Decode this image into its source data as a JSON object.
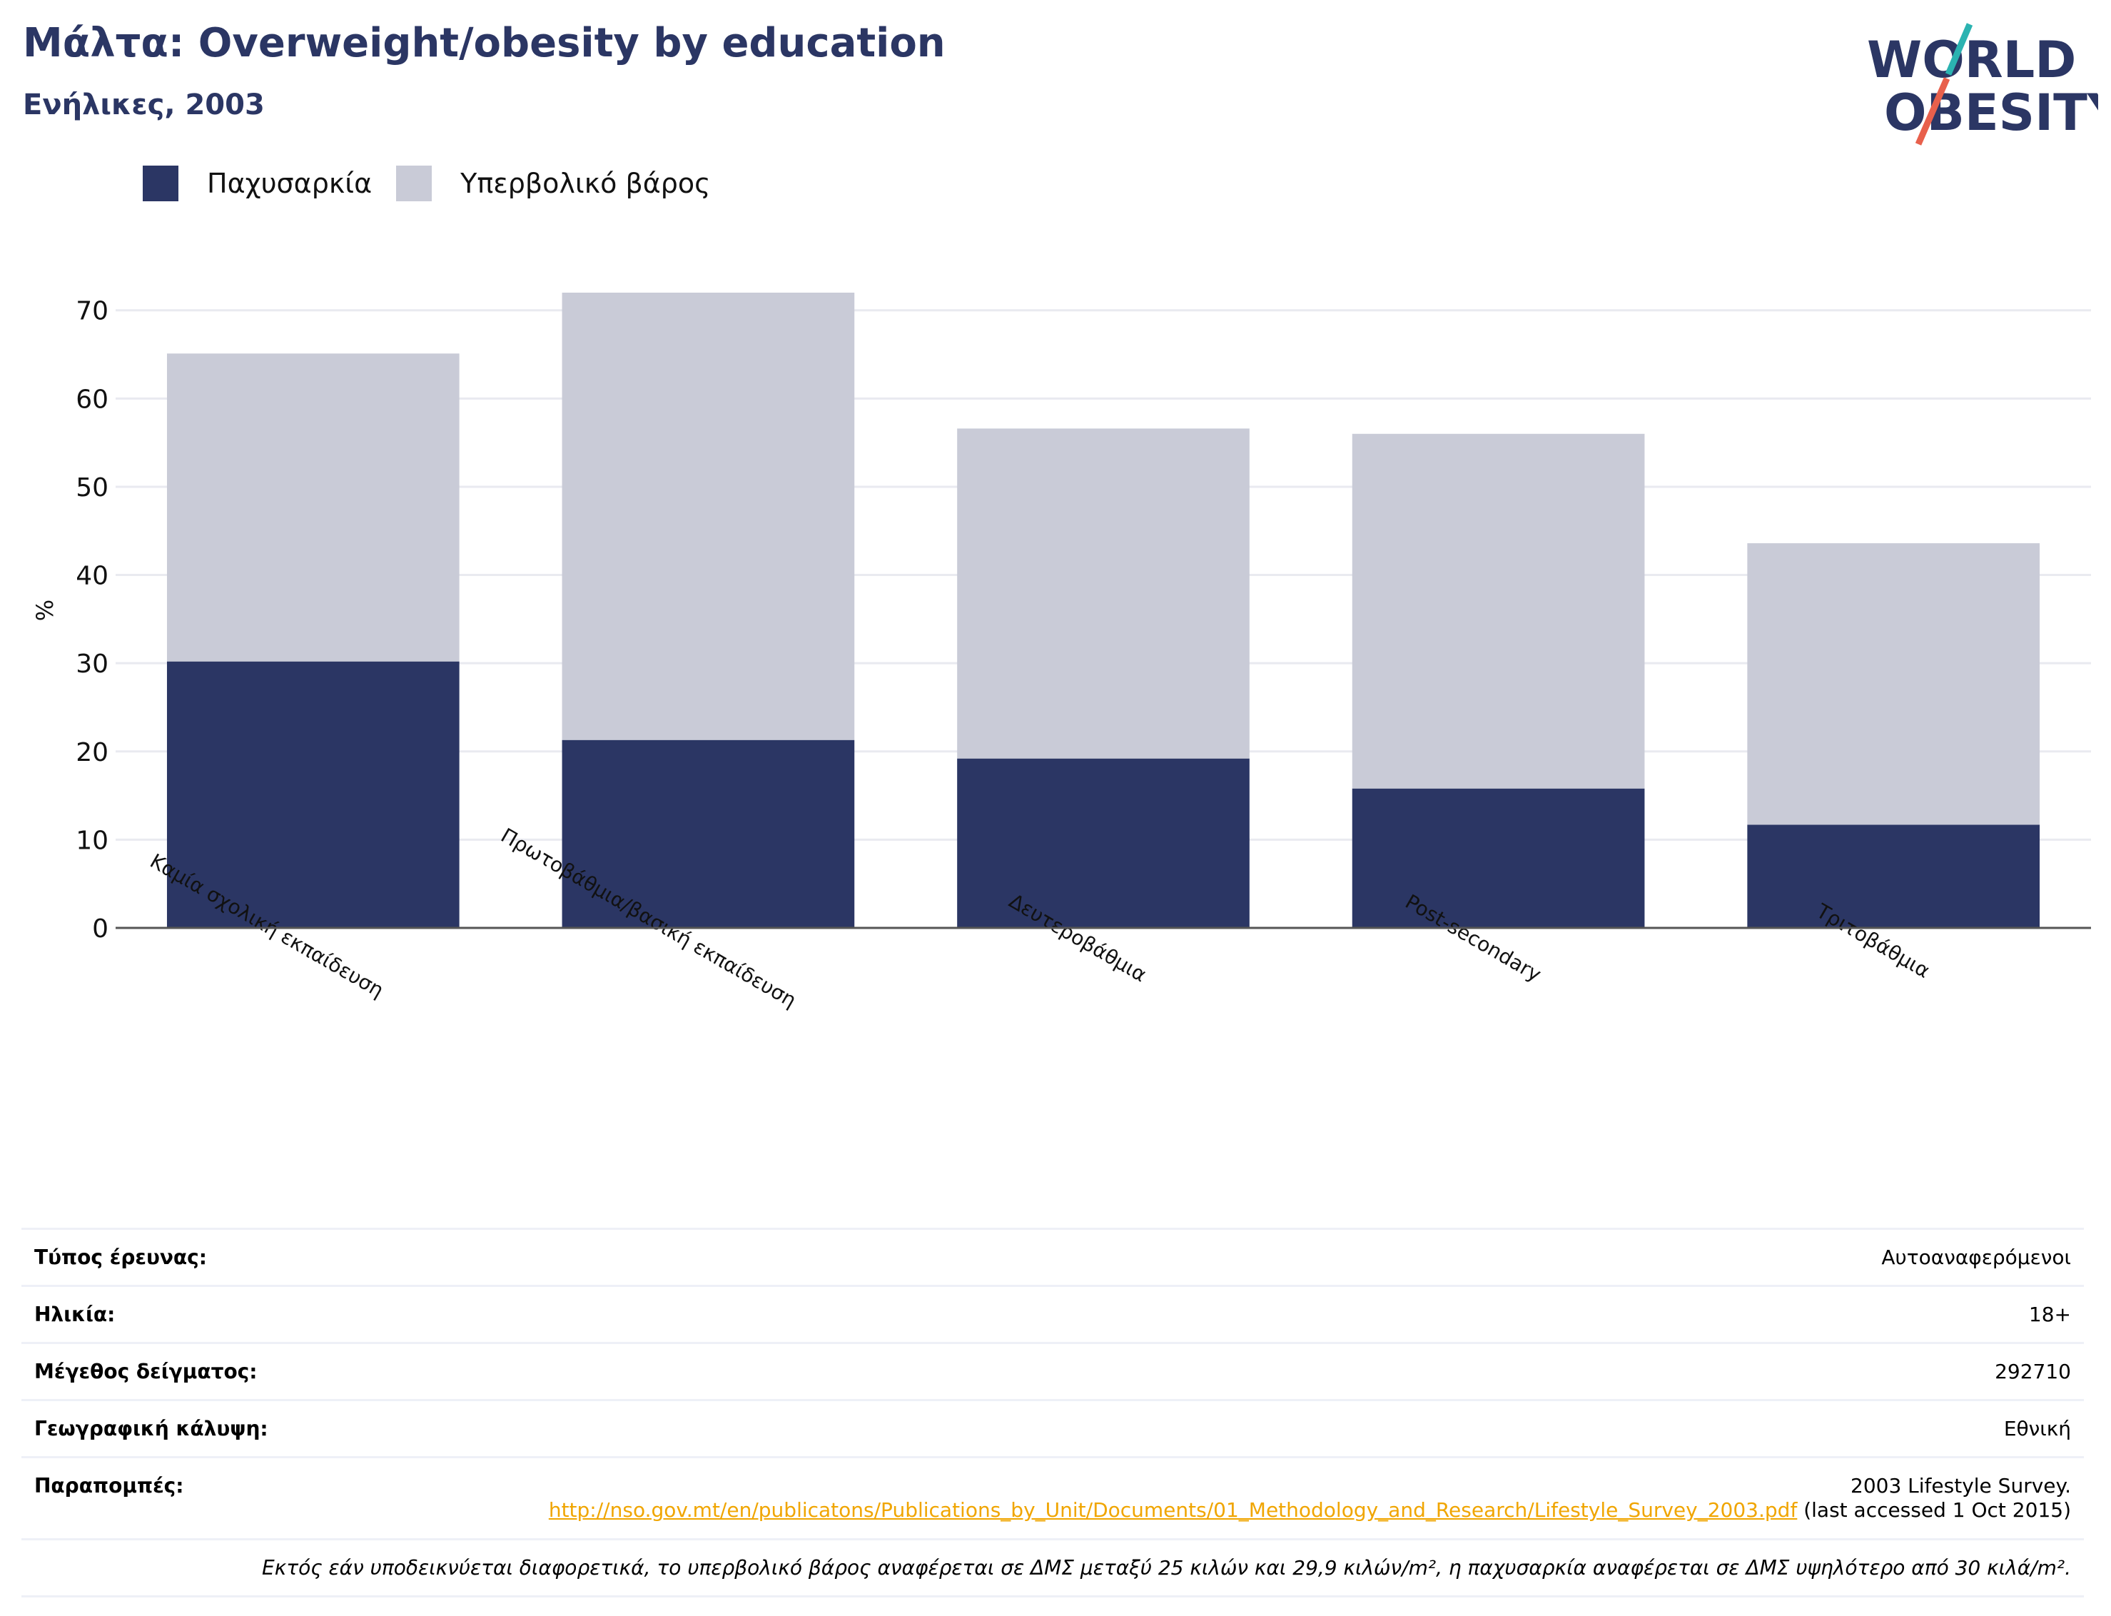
{
  "header": {
    "title": "Μάλτα: Overweight/obesity by education",
    "subtitle": "Ενήλικες, 2003"
  },
  "logo": {
    "line1": "WORLD",
    "line2": "OBESITY",
    "colors": {
      "text": "#2b3664",
      "slash_top": "#2bb3b1",
      "slash_bottom": "#e8604c"
    }
  },
  "colors": {
    "obesity": "#2b3664",
    "overweight": "#c9cbd7",
    "grid": "#e9eaf0",
    "axis": "#555555",
    "link": "#f0a500"
  },
  "chart_data": {
    "type": "bar",
    "stacked": true,
    "ylabel": "%",
    "ylim": [
      0,
      72
    ],
    "yticks": [
      0,
      10,
      20,
      30,
      40,
      50,
      60,
      70
    ],
    "grid": true,
    "legend_position": "top-left",
    "categories": [
      "Καμία σχολική εκπαίδευση",
      "Πρωτοβάθμια/βασική εκπαίδευση",
      "Δευτεροβάθμια",
      "Post-secondary",
      "Τριτοβάθμια"
    ],
    "series": [
      {
        "name": "Παχυσαρκία",
        "color": "#2b3664",
        "values": [
          30.2,
          21.3,
          19.2,
          15.8,
          11.7
        ]
      },
      {
        "name": "Υπερβολικό βάρος",
        "color": "#c9cbd7",
        "values": [
          34.9,
          50.7,
          37.4,
          40.2,
          31.9
        ]
      }
    ]
  },
  "info": {
    "survey_type_label": "Τύπος έρευνας:",
    "survey_type_value": "Αυτοαναφερόμενοι",
    "age_label": "Ηλικία:",
    "age_value": "18+",
    "sample_label": "Μέγεθος δείγματος:",
    "sample_value": "292710",
    "coverage_label": "Γεωγραφική κάλυψη:",
    "coverage_value": "Εθνική",
    "references_label": "Παραπομπές:",
    "references_text": "2003 Lifestyle Survey.",
    "references_link": "http://nso.gov.mt/en/publicatons/Publications_by_Unit/Documents/01_Methodology_and_Research/Lifestyle_Survey_2003.pdf",
    "references_suffix": "(last accessed 1 Oct 2015)",
    "note": "Εκτός εάν υποδεικνύεται διαφορετικά, το υπερβολικό βάρος αναφέρεται σε ΔΜΣ μεταξύ 25 κιλών και 29,9 κιλών/m², η παχυσαρκία αναφέρεται σε ΔΜΣ υψηλότερο από 30 κιλά/m²."
  }
}
